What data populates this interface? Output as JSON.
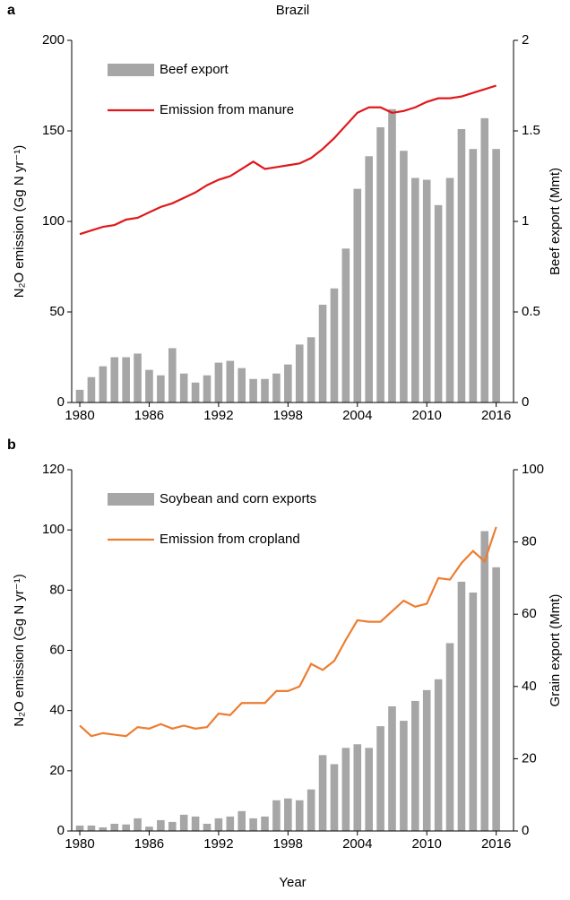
{
  "chart_data": [
    {
      "type": "combo",
      "panel": "a",
      "title": "Brazil",
      "x": [
        1980,
        1981,
        1982,
        1983,
        1984,
        1985,
        1986,
        1987,
        1988,
        1989,
        1990,
        1991,
        1992,
        1993,
        1994,
        1995,
        1996,
        1997,
        1998,
        1999,
        2000,
        2001,
        2002,
        2003,
        2004,
        2005,
        2006,
        2007,
        2008,
        2009,
        2010,
        2011,
        2012,
        2013,
        2014,
        2015,
        2016
      ],
      "xlim": [
        1979.3,
        2017.5
      ],
      "xticks": [
        1980,
        1986,
        1992,
        1998,
        2004,
        2010,
        2016
      ],
      "ylabel": "N₂O emission (Gg N yr⁻¹)",
      "ylim": [
        0,
        200
      ],
      "yticks": [
        0,
        50,
        100,
        150,
        200
      ],
      "y2label": "Beef export (Mmt)",
      "y2lim": [
        0,
        2
      ],
      "y2ticks": [
        0,
        0.5,
        1,
        1.5,
        2
      ],
      "legend": "upper left",
      "series": [
        {
          "name": "Beef export",
          "kind": "bar",
          "axis": "y2",
          "color": "#a6a6a6",
          "values": [
            0.07,
            0.14,
            0.2,
            0.25,
            0.25,
            0.27,
            0.18,
            0.15,
            0.3,
            0.16,
            0.11,
            0.15,
            0.22,
            0.23,
            0.19,
            0.13,
            0.13,
            0.16,
            0.21,
            0.32,
            0.36,
            0.54,
            0.63,
            0.85,
            1.18,
            1.36,
            1.52,
            1.62,
            1.39,
            1.24,
            1.23,
            1.09,
            1.24,
            1.51,
            1.4,
            1.57,
            1.4
          ]
        },
        {
          "name": "Emission from manure",
          "kind": "line",
          "color": "#e0181b",
          "values": [
            93,
            95,
            97,
            98,
            101,
            102,
            105,
            108,
            110,
            113,
            116,
            120,
            123,
            125,
            129,
            133,
            129,
            130,
            131,
            132,
            135,
            140,
            146,
            153,
            160,
            163,
            163,
            160,
            161,
            163,
            166,
            168,
            168,
            169,
            171,
            173,
            175
          ]
        }
      ]
    },
    {
      "type": "combo",
      "panel": "b",
      "xlabel": "Year",
      "x": [
        1980,
        1981,
        1982,
        1983,
        1984,
        1985,
        1986,
        1987,
        1988,
        1989,
        1990,
        1991,
        1992,
        1993,
        1994,
        1995,
        1996,
        1997,
        1998,
        1999,
        2000,
        2001,
        2002,
        2003,
        2004,
        2005,
        2006,
        2007,
        2008,
        2009,
        2010,
        2011,
        2012,
        2013,
        2014,
        2015,
        2016
      ],
      "xlim": [
        1979.3,
        2017.5
      ],
      "xticks": [
        1980,
        1986,
        1992,
        1998,
        2004,
        2010,
        2016
      ],
      "ylabel": "N₂O emission (Gg N yr⁻¹)",
      "ylim": [
        0,
        120
      ],
      "yticks": [
        0,
        20,
        40,
        60,
        80,
        100,
        120
      ],
      "y2label": "Grain export (Mmt)",
      "y2lim": [
        0,
        100
      ],
      "y2ticks": [
        0,
        20,
        40,
        60,
        80,
        100
      ],
      "legend": "upper left",
      "series": [
        {
          "name": "Soybean and corn exports",
          "kind": "bar",
          "axis": "y2",
          "color": "#a6a6a6",
          "values": [
            1.5,
            1.5,
            1,
            2,
            1.8,
            3.5,
            1.2,
            3,
            2.5,
            4.5,
            4,
            2,
            3.5,
            4,
            5.5,
            3.5,
            4,
            8.5,
            9,
            8.5,
            11.5,
            21,
            18.5,
            23,
            24,
            23,
            29,
            34.5,
            30.5,
            36,
            39,
            42,
            52,
            69,
            66,
            83,
            73
          ]
        },
        {
          "name": "Emission from cropland",
          "kind": "line",
          "color": "#ed7d31",
          "values": [
            35,
            31.5,
            32.5,
            32,
            31.5,
            34.5,
            34,
            35.5,
            34,
            35,
            34,
            34.5,
            39,
            38.5,
            42.5,
            42.5,
            42.5,
            46.5,
            46.5,
            48,
            55.5,
            53.5,
            56.5,
            63.5,
            70,
            69.5,
            69.5,
            73,
            76.5,
            74.5,
            75.5,
            84,
            83.5,
            89,
            93,
            89.5,
            101
          ]
        }
      ]
    }
  ]
}
